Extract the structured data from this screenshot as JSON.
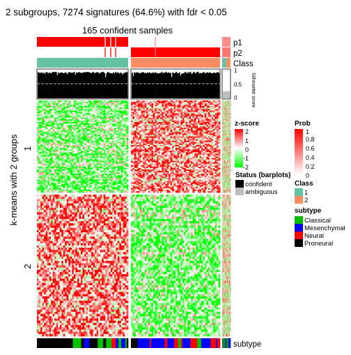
{
  "title": "2 subgroups, 7274 signatures (64.6%) with fdr < 0.05",
  "subtitle": "165 confident samples",
  "y_axis_label": "k-means with 2 groups",
  "row_group_labels": [
    "1",
    "2"
  ],
  "annotation_labels": {
    "p1": "p1",
    "p2": "p2",
    "class": "Class",
    "subtype": "subtype"
  },
  "silhouette": {
    "axis_title": "Silhouette score",
    "ticks": [
      "1",
      "0.5",
      "0"
    ]
  },
  "legends": {
    "zscore": {
      "title": "z-score",
      "ticks": [
        "2",
        "1",
        "0",
        "-1",
        "-2"
      ]
    },
    "prob": {
      "title": "Prob",
      "ticks": [
        "1",
        "0.8",
        "0.6",
        "0.4",
        "0.2",
        "0"
      ]
    },
    "status": {
      "title": "Status (barplots)",
      "items": [
        {
          "label": "confident",
          "color": "#000000"
        },
        {
          "label": "ambiguous",
          "color": "#bebebe"
        }
      ]
    },
    "class": {
      "title": "Class",
      "items": [
        {
          "label": "1",
          "color": "#66c2a5"
        },
        {
          "label": "2",
          "color": "#fc8d62"
        }
      ]
    },
    "subtype": {
      "title": "subtype",
      "items": [
        {
          "label": "Classical",
          "color": "#00c000"
        },
        {
          "label": "Mesenchymal",
          "color": "#0000ff"
        },
        {
          "label": "Neural",
          "color": "#ff0000"
        },
        {
          "label": "Proneural",
          "color": "#000000"
        }
      ]
    }
  },
  "chart_data": {
    "type": "heatmap",
    "title": "2 subgroups, 7274 signatures (64.6%) with fdr < 0.05",
    "subtitle": "165 confident samples",
    "ylabel": "k-means with 2 groups",
    "column_groups": [
      {
        "class": "1",
        "p1": 1.0,
        "p2": 0.0,
        "approx_fraction_of_samples": 0.5
      },
      {
        "class": "2",
        "p1": 0.0,
        "p2": 1.0,
        "approx_fraction_of_samples": 0.5
      }
    ],
    "row_groups": [
      {
        "name": "1",
        "pattern": "low z-score in class 1 samples, high z-score in class 2 samples"
      },
      {
        "name": "2",
        "pattern": "high z-score in class 1 samples, low z-score in class 2 samples"
      }
    ],
    "zscore_range": [
      -2,
      2
    ],
    "zscore_colors": {
      "-2": "#00ff00",
      "0": "#ffffff",
      "2": "#ff0000"
    },
    "prob_range": [
      0,
      1
    ],
    "prob_colors": {
      "0": "#ffffff",
      "1": "#ff0000"
    },
    "silhouette_range": [
      0,
      1
    ],
    "silhouette_cutoff": 0.5,
    "silhouette_typical": 0.9
  }
}
